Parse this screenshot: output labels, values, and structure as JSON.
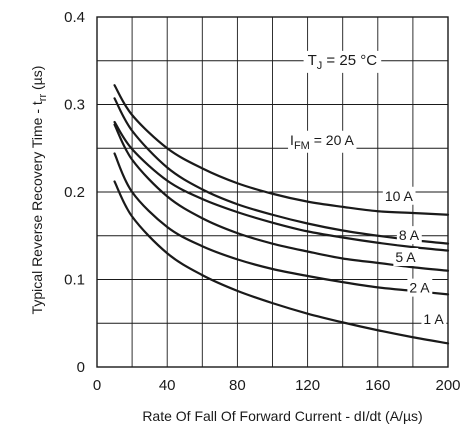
{
  "chart_data": {
    "type": "line",
    "xlabel": "Rate Of Fall Of Forward Current - dI/dt (A/µs)",
    "ylabel": "Typical Reverse Recovery Time - t",
    "ylabel_sub": "rr",
    "ylabel_unit": " (µs)",
    "xlim": [
      0,
      200
    ],
    "ylim": [
      0,
      0.4
    ],
    "x_ticks": [
      "0",
      "40",
      "80",
      "120",
      "160",
      "200"
    ],
    "y_ticks": [
      "0",
      "0.1",
      "0.2",
      "0.3",
      "0.4"
    ],
    "grid": true,
    "annotation": {
      "main": "T",
      "sub": "J",
      "rest": " = 25 °C"
    },
    "series": [
      {
        "name": "20 A",
        "label_prefix": "I",
        "label_sub": "FM",
        "label_text": " = 20 A",
        "points": [
          [
            10,
            0.322
          ],
          [
            20,
            0.288
          ],
          [
            40,
            0.25
          ],
          [
            60,
            0.227
          ],
          [
            80,
            0.21
          ],
          [
            100,
            0.198
          ],
          [
            120,
            0.189
          ],
          [
            140,
            0.183
          ],
          [
            160,
            0.178
          ],
          [
            180,
            0.176
          ],
          [
            200,
            0.174
          ]
        ]
      },
      {
        "name": "10 A",
        "label_text": "10 A",
        "points": [
          [
            10,
            0.307
          ],
          [
            20,
            0.27
          ],
          [
            40,
            0.228
          ],
          [
            60,
            0.203
          ],
          [
            80,
            0.186
          ],
          [
            100,
            0.174
          ],
          [
            120,
            0.164
          ],
          [
            140,
            0.156
          ],
          [
            160,
            0.15
          ],
          [
            180,
            0.145
          ],
          [
            200,
            0.141
          ]
        ]
      },
      {
        "name": "8 A",
        "label_text": "8 A",
        "points": [
          [
            10,
            0.28
          ],
          [
            20,
            0.249
          ],
          [
            40,
            0.213
          ],
          [
            60,
            0.192
          ],
          [
            80,
            0.177
          ],
          [
            100,
            0.165
          ],
          [
            120,
            0.155
          ],
          [
            140,
            0.148
          ],
          [
            160,
            0.142
          ],
          [
            180,
            0.137
          ],
          [
            200,
            0.133
          ]
        ]
      },
      {
        "name": "5 A",
        "label_text": "5 A",
        "points": [
          [
            10,
            0.277
          ],
          [
            20,
            0.237
          ],
          [
            40,
            0.195
          ],
          [
            60,
            0.17
          ],
          [
            80,
            0.153
          ],
          [
            100,
            0.141
          ],
          [
            120,
            0.132
          ],
          [
            140,
            0.124
          ],
          [
            160,
            0.119
          ],
          [
            180,
            0.114
          ],
          [
            200,
            0.11
          ]
        ]
      },
      {
        "name": "2 A",
        "label_text": "2 A",
        "points": [
          [
            10,
            0.244
          ],
          [
            20,
            0.2
          ],
          [
            40,
            0.16
          ],
          [
            60,
            0.138
          ],
          [
            80,
            0.123
          ],
          [
            100,
            0.112
          ],
          [
            120,
            0.104
          ],
          [
            140,
            0.097
          ],
          [
            160,
            0.091
          ],
          [
            180,
            0.087
          ],
          [
            200,
            0.083
          ]
        ]
      },
      {
        "name": "1 A",
        "label_text": "1 A",
        "points": [
          [
            10,
            0.212
          ],
          [
            20,
            0.172
          ],
          [
            40,
            0.13
          ],
          [
            60,
            0.105
          ],
          [
            80,
            0.087
          ],
          [
            100,
            0.073
          ],
          [
            120,
            0.061
          ],
          [
            140,
            0.051
          ],
          [
            160,
            0.042
          ],
          [
            180,
            0.034
          ],
          [
            200,
            0.027
          ]
        ]
      }
    ]
  }
}
